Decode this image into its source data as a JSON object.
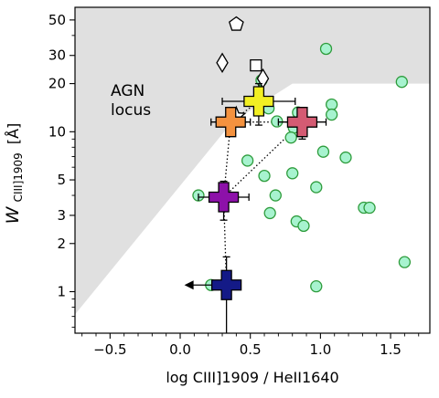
{
  "chart_data": {
    "type": "scatter",
    "xlabel": "log CIII]1909 / HeII1640",
    "ylabel_main": "W",
    "ylabel_sub": "CIII]1909",
    "ylabel_unit": "[Å]",
    "xlim": [
      -0.75,
      1.78
    ],
    "ylim": [
      0.55,
      60
    ],
    "yscale": "log",
    "x_ticks": [
      -0.5,
      0.0,
      0.5,
      1.0,
      1.5
    ],
    "x_tick_labels": [
      "−0.5",
      "0.0",
      "0.5",
      "1.0",
      "1.5"
    ],
    "y_ticks": [
      1,
      2,
      3,
      5,
      10,
      20,
      30,
      50
    ],
    "y_tick_labels": [
      "1",
      "2",
      "3",
      "5",
      "10",
      "20",
      "30",
      "50"
    ],
    "annotation": [
      "AGN",
      "locus"
    ],
    "agn_region_color": "#e0e0e0",
    "agn_locus_vertices": [
      [
        -0.75,
        0.55
      ],
      [
        -0.75,
        0.72
      ],
      [
        0.37,
        11.5
      ],
      [
        0.8,
        20
      ],
      [
        1.78,
        20
      ],
      [
        1.78,
        60
      ],
      [
        -0.75,
        60
      ]
    ],
    "circle_series": {
      "fill": "#a7f3cf",
      "edge": "#2e9c3c",
      "points": [
        [
          1.04,
          33
        ],
        [
          1.58,
          20.5
        ],
        [
          0.58,
          21
        ],
        [
          0.63,
          14
        ],
        [
          1.08,
          14.8
        ],
        [
          0.69,
          11.6
        ],
        [
          0.84,
          13.2
        ],
        [
          0.81,
          10.6
        ],
        [
          1.08,
          12.8
        ],
        [
          0.79,
          9.2
        ],
        [
          1.02,
          7.5
        ],
        [
          1.18,
          6.9
        ],
        [
          0.48,
          6.6
        ],
        [
          0.6,
          5.3
        ],
        [
          0.8,
          5.5
        ],
        [
          0.97,
          4.5
        ],
        [
          0.68,
          4.0
        ],
        [
          0.13,
          4.0
        ],
        [
          0.64,
          3.1
        ],
        [
          0.83,
          2.75
        ],
        [
          0.88,
          2.58
        ],
        [
          1.31,
          3.35
        ],
        [
          1.35,
          3.35
        ],
        [
          1.6,
          1.53
        ],
        [
          0.22,
          1.1
        ],
        [
          0.97,
          1.08
        ]
      ]
    },
    "open_markers": [
      {
        "shape": "pentagon",
        "x": 0.4,
        "y": 47
      },
      {
        "shape": "diamond",
        "x": 0.3,
        "y": 27
      },
      {
        "shape": "square",
        "x": 0.54,
        "y": 26
      },
      {
        "shape": "diamond",
        "x": 0.59,
        "y": 21.5
      },
      {
        "shape": "star",
        "x": 0.4,
        "y": 12.5
      }
    ],
    "cross_markers": [
      {
        "color": "#f2ef23",
        "x": 0.56,
        "y": 15.5,
        "xerr": [
          0.26,
          0.26
        ],
        "yerr": [
          4.5,
          4.5
        ]
      },
      {
        "color": "#d45b73",
        "x": 0.87,
        "y": 11.5,
        "xerr": [
          0.17,
          0.17
        ],
        "yerr": [
          2.5,
          2.5
        ]
      },
      {
        "color": "#f4923f",
        "x": 0.36,
        "y": 11.5,
        "xerr": [
          0.14,
          0.14
        ],
        "yerr": [
          2.0,
          2.0
        ]
      },
      {
        "color": "#8d11a9",
        "x": 0.31,
        "y": 3.9,
        "xerr": [
          0.18,
          0.18
        ],
        "yerr": [
          1.1,
          1.0
        ]
      },
      {
        "color": "#141a87",
        "x": 0.33,
        "y": 1.1,
        "xerr": [
          0.0,
          0.0
        ],
        "yerr": [
          0.9,
          0.55
        ],
        "upper_limit_x": true
      }
    ],
    "dotted_links": [
      [
        [
          0.56,
          15.5
        ],
        [
          0.36,
          11.5
        ]
      ],
      [
        [
          0.36,
          11.5
        ],
        [
          0.31,
          3.9
        ]
      ],
      [
        [
          0.31,
          3.9
        ],
        [
          0.33,
          1.1
        ]
      ],
      [
        [
          0.36,
          11.5
        ],
        [
          0.87,
          11.5
        ]
      ],
      [
        [
          0.87,
          11.5
        ],
        [
          0.31,
          3.9
        ]
      ]
    ]
  }
}
